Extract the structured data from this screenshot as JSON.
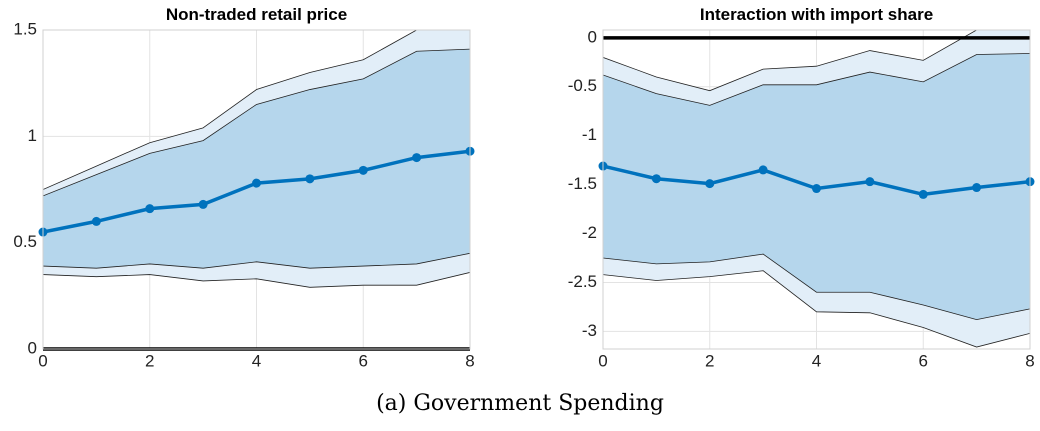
{
  "chart_data": [
    {
      "type": "line",
      "title": "Non-traded retail price",
      "x": [
        0,
        1,
        2,
        3,
        4,
        5,
        6,
        7,
        8
      ],
      "xlim": [
        0,
        8
      ],
      "xticks": [
        0,
        2,
        4,
        6,
        8
      ],
      "ylim": [
        0,
        1.5
      ],
      "yticks": [
        0,
        0.5,
        1,
        1.5
      ],
      "grid": true,
      "zero_line": true,
      "bands": [
        {
          "color": "#e2eef8",
          "lower": [
            0.35,
            0.34,
            0.35,
            0.32,
            0.33,
            0.29,
            0.3,
            0.3,
            0.36
          ],
          "upper": [
            0.75,
            0.86,
            0.97,
            1.04,
            1.22,
            1.3,
            1.36,
            1.5,
            1.5
          ]
        },
        {
          "color": "#b5d6ec",
          "lower": [
            0.39,
            0.38,
            0.4,
            0.38,
            0.41,
            0.38,
            0.39,
            0.4,
            0.45
          ],
          "upper": [
            0.72,
            0.82,
            0.92,
            0.98,
            1.15,
            1.22,
            1.27,
            1.4,
            1.41
          ]
        }
      ],
      "series": [
        {
          "color": "#0072bd",
          "values": [
            0.55,
            0.6,
            0.66,
            0.68,
            0.78,
            0.8,
            0.84,
            0.9,
            0.93
          ]
        }
      ]
    },
    {
      "type": "line",
      "title": "Interaction with import share",
      "x": [
        0,
        1,
        2,
        3,
        4,
        5,
        6,
        7,
        8
      ],
      "xlim": [
        0,
        8
      ],
      "xticks": [
        0,
        2,
        4,
        6,
        8
      ],
      "ylim": [
        -3.18,
        0.08
      ],
      "yticks": [
        -3,
        -2.5,
        -2,
        -1.5,
        -1,
        -0.5,
        0
      ],
      "grid": true,
      "zero_line": true,
      "bands": [
        {
          "color": "#e2eef8",
          "lower": [
            -2.42,
            -2.48,
            -2.44,
            -2.38,
            -2.8,
            -2.81,
            -2.96,
            -3.16,
            -3.02
          ],
          "upper": [
            -0.2,
            -0.4,
            -0.54,
            -0.32,
            -0.29,
            -0.13,
            -0.23,
            0.08,
            0.08
          ]
        },
        {
          "color": "#b5d6ec",
          "lower": [
            -2.25,
            -2.31,
            -2.29,
            -2.21,
            -2.6,
            -2.6,
            -2.73,
            -2.88,
            -2.77
          ],
          "upper": [
            -0.38,
            -0.57,
            -0.69,
            -0.48,
            -0.48,
            -0.35,
            -0.45,
            -0.17,
            -0.16
          ]
        }
      ],
      "series": [
        {
          "color": "#0072bd",
          "values": [
            -1.31,
            -1.44,
            -1.49,
            -1.35,
            -1.54,
            -1.47,
            -1.6,
            -1.53,
            -1.47
          ]
        }
      ]
    }
  ],
  "caption": "(a) Government Spending"
}
